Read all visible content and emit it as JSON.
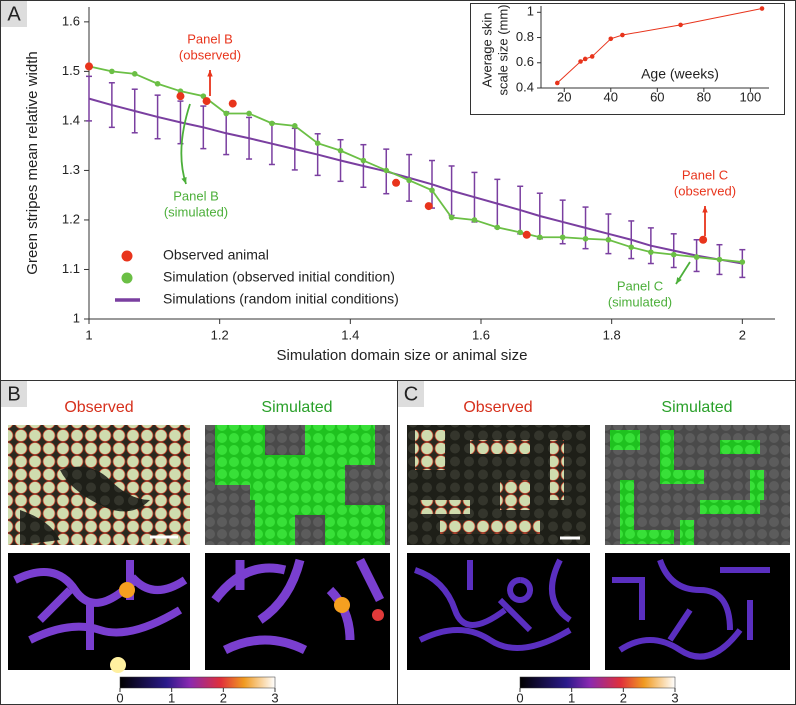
{
  "panels": {
    "a": "A",
    "b": "B",
    "c": "C"
  },
  "chart_data": [
    {
      "type": "line",
      "xlabel": "Simulation domain size or animal size",
      "ylabel": "Green stripes mean relative width",
      "xlim": [
        1,
        2.05
      ],
      "ylim": [
        1,
        1.63
      ],
      "xticks": [
        1,
        1.2,
        1.4,
        1.6,
        1.8,
        2
      ],
      "yticks": [
        1,
        1.1,
        1.2,
        1.3,
        1.4,
        1.5,
        1.6
      ],
      "grid": false,
      "legend": "lower-left",
      "series": [
        {
          "name": "Observed animal",
          "color": "#e8341c",
          "kind": "scatter",
          "x": [
            1,
            1.14,
            1.18,
            1.22,
            1.47,
            1.52,
            1.67,
            1.94
          ],
          "values": [
            1.51,
            1.45,
            1.44,
            1.435,
            1.275,
            1.228,
            1.17,
            1.16
          ]
        },
        {
          "name": "Simulation (observed initial condition)",
          "color": "#6bbf45",
          "kind": "line-markers",
          "x": [
            1,
            1.035,
            1.07,
            1.105,
            1.14,
            1.175,
            1.21,
            1.245,
            1.28,
            1.315,
            1.35,
            1.385,
            1.42,
            1.455,
            1.49,
            1.525,
            1.555,
            1.59,
            1.625,
            1.66,
            1.69,
            1.725,
            1.76,
            1.795,
            1.83,
            1.86,
            1.895,
            1.93,
            1.965,
            2
          ],
          "values": [
            1.51,
            1.5,
            1.495,
            1.475,
            1.46,
            1.45,
            1.415,
            1.415,
            1.395,
            1.39,
            1.355,
            1.34,
            1.32,
            1.3,
            1.28,
            1.26,
            1.205,
            1.2,
            1.185,
            1.175,
            1.165,
            1.165,
            1.162,
            1.16,
            1.145,
            1.135,
            1.13,
            1.125,
            1.12,
            1.115
          ]
        },
        {
          "name": "Simulations (random initial conditions)",
          "color": "#7a3fa0",
          "kind": "line-errorbars",
          "x": [
            1,
            1.035,
            1.07,
            1.105,
            1.14,
            1.175,
            1.21,
            1.245,
            1.28,
            1.315,
            1.35,
            1.385,
            1.42,
            1.455,
            1.49,
            1.525,
            1.555,
            1.59,
            1.625,
            1.66,
            1.69,
            1.725,
            1.76,
            1.795,
            1.83,
            1.86,
            1.895,
            1.93,
            1.965,
            2
          ],
          "values": [
            1.445,
            1.432,
            1.42,
            1.408,
            1.397,
            1.387,
            1.375,
            1.365,
            1.354,
            1.343,
            1.332,
            1.32,
            1.309,
            1.298,
            1.285,
            1.272,
            1.259,
            1.246,
            1.233,
            1.22,
            1.208,
            1.196,
            1.184,
            1.172,
            1.16,
            1.148,
            1.138,
            1.128,
            1.12,
            1.112
          ],
          "errors": [
            0.045,
            0.045,
            0.044,
            0.044,
            0.043,
            0.043,
            0.043,
            0.042,
            0.042,
            0.042,
            0.042,
            0.042,
            0.043,
            0.045,
            0.047,
            0.048,
            0.05,
            0.05,
            0.049,
            0.048,
            0.046,
            0.044,
            0.042,
            0.04,
            0.038,
            0.036,
            0.034,
            0.032,
            0.03,
            0.028
          ]
        }
      ],
      "annotations": [
        {
          "lines": [
            "Panel B",
            "(observed)"
          ],
          "color": "#e8341c"
        },
        {
          "lines": [
            "Panel B",
            "(simulated)"
          ],
          "color": "#4caf3a"
        },
        {
          "lines": [
            "Panel C",
            "(observed)"
          ],
          "color": "#e8341c"
        },
        {
          "lines": [
            "Panel C",
            "(simulated)"
          ],
          "color": "#4caf3a"
        }
      ]
    },
    {
      "type": "line",
      "xlabel": "Age (weeks)",
      "ylabel": [
        "Average skin",
        "scale size (mm)"
      ],
      "xlim": [
        10,
        108
      ],
      "ylim": [
        0.4,
        1.05
      ],
      "xticks": [
        20,
        40,
        60,
        80,
        100
      ],
      "yticks": [
        0.4,
        0.6,
        0.8,
        1
      ],
      "color": "#e8341c",
      "x": [
        17,
        27,
        29,
        32,
        40,
        45,
        70,
        105
      ],
      "values": [
        0.44,
        0.61,
        0.63,
        0.65,
        0.79,
        0.82,
        0.9,
        1.03
      ]
    }
  ],
  "panel_b": {
    "observed": "Observed",
    "simulated": "Simulated"
  },
  "panel_c": {
    "observed": "Observed",
    "simulated": "Simulated"
  },
  "colorbar": {
    "lim": [
      0,
      3
    ],
    "ticks": [
      0,
      1,
      2,
      3
    ]
  }
}
